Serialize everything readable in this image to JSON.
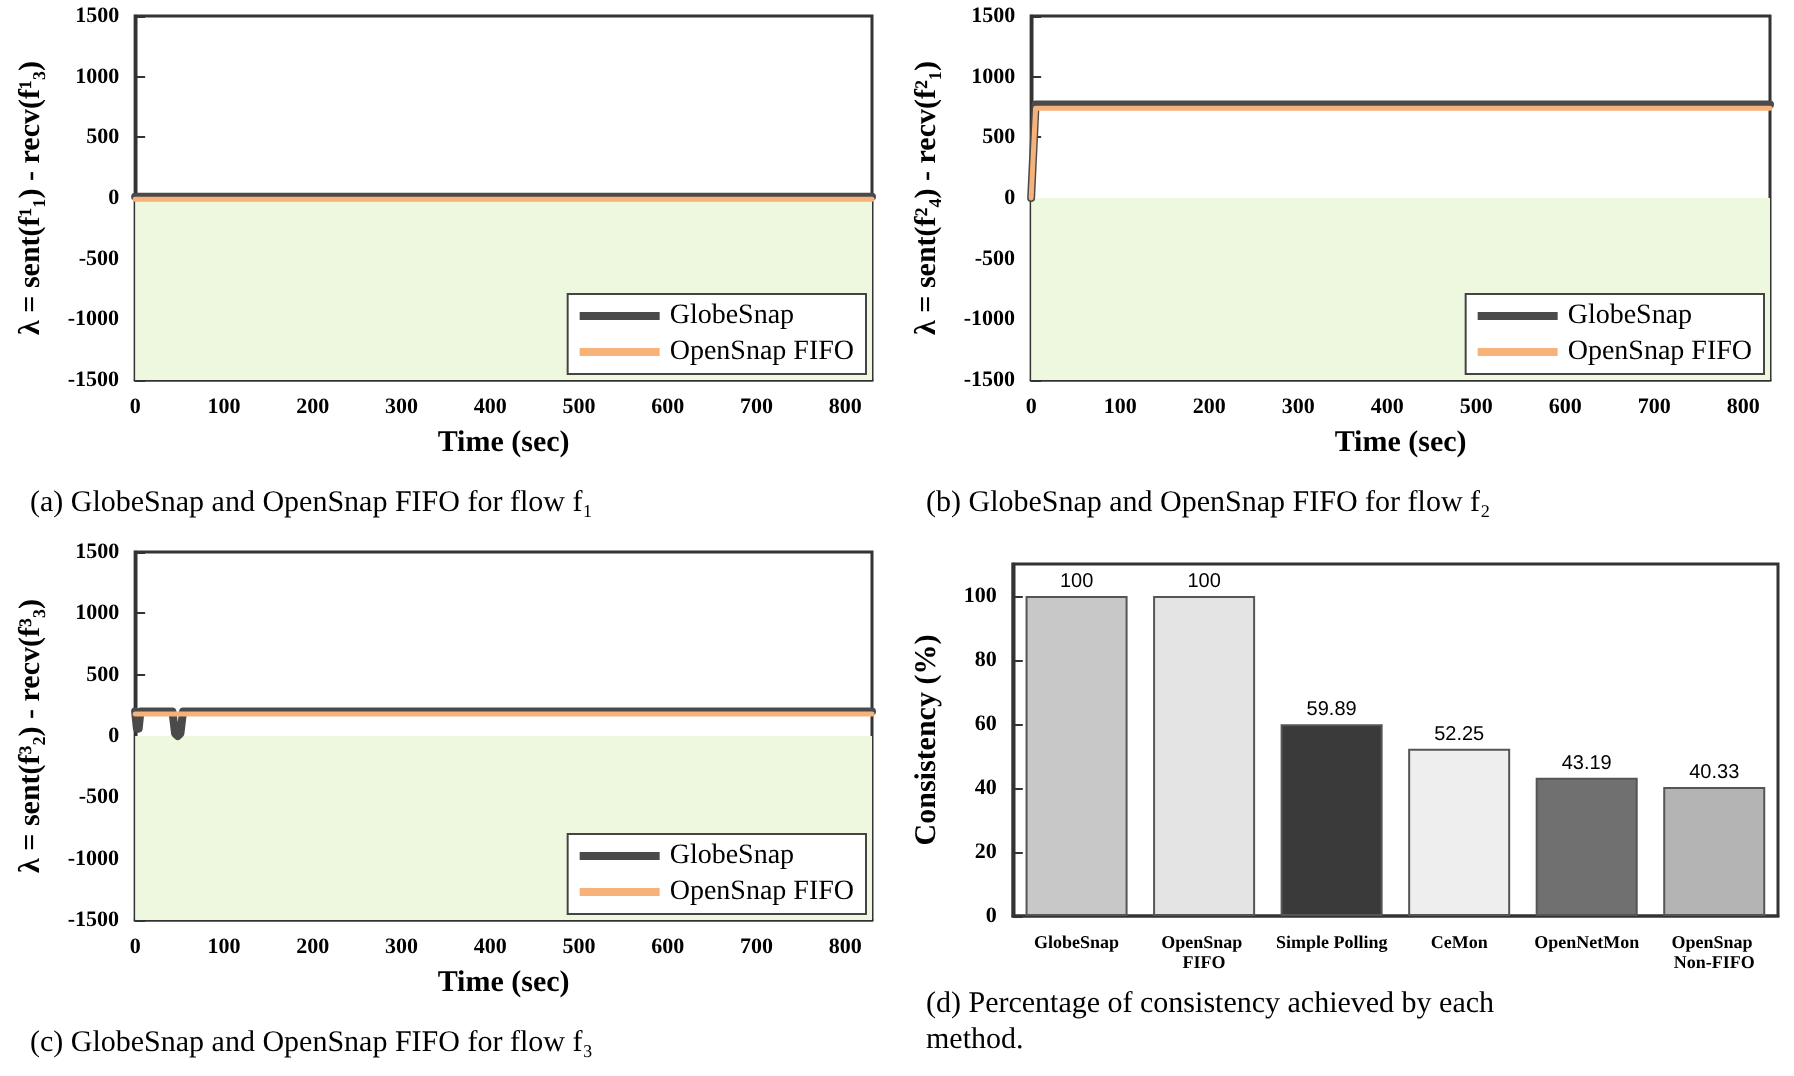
{
  "chart_data": [
    {
      "type": "line",
      "title": "(a) GlobeSnap and OpenSnap FIFO for flow f₁",
      "xlabel": "Time (sec)",
      "ylabel": "λ = sent(f¹₁) - recv(f¹₃)",
      "xlim": [
        0,
        830
      ],
      "xticks": [
        0,
        100,
        200,
        300,
        400,
        500,
        600,
        700,
        800
      ],
      "ylim": [
        -1500,
        1500
      ],
      "yticks": [
        -1500,
        -1000,
        -500,
        0,
        500,
        1000,
        1500
      ],
      "grid": false,
      "legend": "bottom right",
      "marker": "none",
      "line_style": "solid",
      "bands": [
        {
          "axis": "y",
          "from": -1500,
          "to": 0,
          "color": "#eef8df"
        }
      ],
      "series": [
        {
          "name": "GlobeSnap",
          "color": "#4a4a4a",
          "x": [
            0,
            830
          ],
          "values": [
            10,
            10
          ]
        },
        {
          "name": "OpenSnap FIFO",
          "color": "#f7b27a",
          "x": [
            0,
            830
          ],
          "values": [
            -10,
            -10
          ]
        }
      ]
    },
    {
      "type": "line",
      "title": "(b) GlobeSnap and OpenSnap FIFO for flow f₂",
      "xlabel": "Time (sec)",
      "ylabel": "λ = sent(f²₄) - recv(f²₁)",
      "xlim": [
        0,
        830
      ],
      "xticks": [
        0,
        100,
        200,
        300,
        400,
        500,
        600,
        700,
        800
      ],
      "ylim": [
        -1500,
        1500
      ],
      "yticks": [
        -1500,
        -1000,
        -500,
        0,
        500,
        1000,
        1500
      ],
      "grid": false,
      "legend": "bottom right",
      "marker": "none",
      "line_style": "solid",
      "bands": [
        {
          "axis": "y",
          "from": -1500,
          "to": 0,
          "color": "#eef8df"
        }
      ],
      "series": [
        {
          "name": "GlobeSnap",
          "color": "#4a4a4a",
          "x": [
            0,
            5,
            830
          ],
          "values": [
            0,
            770,
            770
          ]
        },
        {
          "name": "OpenSnap FIFO",
          "color": "#f7b27a",
          "x": [
            0,
            5,
            830
          ],
          "values": [
            0,
            740,
            740
          ]
        }
      ]
    },
    {
      "type": "line",
      "title": "(c) GlobeSnap and OpenSnap FIFO for flow f₃",
      "xlabel": "Time (sec)",
      "ylabel": "λ = sent(f³₂) - recv(f³₃)",
      "xlim": [
        0,
        830
      ],
      "xticks": [
        0,
        100,
        200,
        300,
        400,
        500,
        600,
        700,
        800
      ],
      "ylim": [
        -1500,
        1500
      ],
      "yticks": [
        -1500,
        -1000,
        -500,
        0,
        500,
        1000,
        1500
      ],
      "grid": false,
      "legend": "bottom right",
      "marker": "none",
      "line_style": "solid",
      "bands": [
        {
          "axis": "y",
          "from": -1500,
          "to": 0,
          "color": "#eef8df"
        }
      ],
      "series": [
        {
          "name": "GlobeSnap",
          "color": "#4a4a4a",
          "x": [
            0,
            2,
            4,
            6,
            42,
            45,
            48,
            51,
            54,
            830
          ],
          "values": [
            200,
            60,
            60,
            200,
            200,
            20,
            0,
            20,
            200,
            200
          ]
        },
        {
          "name": "OpenSnap FIFO",
          "color": "#f7b27a",
          "x": [
            0,
            830
          ],
          "values": [
            180,
            180
          ]
        }
      ]
    },
    {
      "type": "bar",
      "title": "(d) Percentage of consistency achieved by each\nmethod.",
      "ylabel": "Consistency (%)",
      "categories": [
        "GlobeSnap",
        "OpenSnap FIFO",
        "Simple Polling",
        "CeMon",
        "OpenNetMon",
        "OpenSnap Non-FIFO"
      ],
      "values": [
        100,
        100,
        59.89,
        52.25,
        43.19,
        40.33
      ],
      "colors": [
        "#c8c8c8",
        "#e4e4e4",
        "#3a3a3a",
        "#eeeeee",
        "#707070",
        "#b4b4b4"
      ],
      "ylim": [
        0,
        110
      ],
      "yticks": [
        0,
        20,
        40,
        60,
        80,
        100
      ],
      "grid": false,
      "data_labels": true
    }
  ]
}
